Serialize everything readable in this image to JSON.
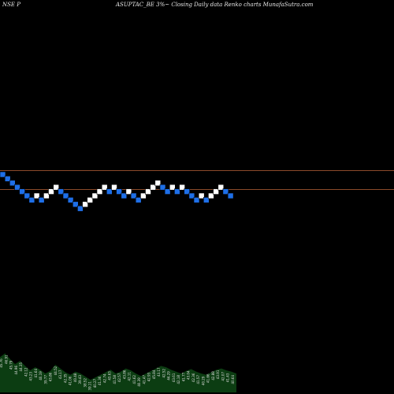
{
  "header": {
    "left": "NSE P",
    "right": "ASUPTAC_BE 3%~  Closing Daily data  Renko  charts MunafaSutra.com"
  },
  "colors": {
    "background": "#000000",
    "up_brick": "#ffffff",
    "down_brick": "#1e6fe8",
    "reference_line": "#8b4a2a",
    "volume_fill": "#0c3d12",
    "volume_text": "#e0e0e0"
  },
  "chart_data": {
    "type": "renko",
    "brick_size_label": "3%",
    "bricks": [
      {
        "dir": "down",
        "level": 9
      },
      {
        "dir": "down",
        "level": 8
      },
      {
        "dir": "down",
        "level": 7
      },
      {
        "dir": "down",
        "level": 6
      },
      {
        "dir": "down",
        "level": 5
      },
      {
        "dir": "down",
        "level": 4
      },
      {
        "dir": "down",
        "level": 3
      },
      {
        "dir": "up",
        "level": 4
      },
      {
        "dir": "down",
        "level": 3
      },
      {
        "dir": "up",
        "level": 4
      },
      {
        "dir": "up",
        "level": 5
      },
      {
        "dir": "up",
        "level": 6
      },
      {
        "dir": "down",
        "level": 5
      },
      {
        "dir": "down",
        "level": 4
      },
      {
        "dir": "down",
        "level": 3
      },
      {
        "dir": "down",
        "level": 2
      },
      {
        "dir": "down",
        "level": 1
      },
      {
        "dir": "up",
        "level": 2
      },
      {
        "dir": "up",
        "level": 3
      },
      {
        "dir": "up",
        "level": 4
      },
      {
        "dir": "up",
        "level": 5
      },
      {
        "dir": "up",
        "level": 6
      },
      {
        "dir": "down",
        "level": 5
      },
      {
        "dir": "up",
        "level": 6
      },
      {
        "dir": "down",
        "level": 5
      },
      {
        "dir": "down",
        "level": 4
      },
      {
        "dir": "up",
        "level": 5
      },
      {
        "dir": "down",
        "level": 4
      },
      {
        "dir": "down",
        "level": 3
      },
      {
        "dir": "up",
        "level": 4
      },
      {
        "dir": "up",
        "level": 5
      },
      {
        "dir": "up",
        "level": 6
      },
      {
        "dir": "up",
        "level": 7
      },
      {
        "dir": "down",
        "level": 6
      },
      {
        "dir": "down",
        "level": 5
      },
      {
        "dir": "up",
        "level": 6
      },
      {
        "dir": "down",
        "level": 5
      },
      {
        "dir": "up",
        "level": 6
      },
      {
        "dir": "down",
        "level": 5
      },
      {
        "dir": "down",
        "level": 4
      },
      {
        "dir": "down",
        "level": 3
      },
      {
        "dir": "up",
        "level": 4
      },
      {
        "dir": "down",
        "level": 3
      },
      {
        "dir": "up",
        "level": 4
      },
      {
        "dir": "up",
        "level": 5
      },
      {
        "dir": "up",
        "level": 6
      },
      {
        "dir": "down",
        "level": 5
      },
      {
        "dir": "down",
        "level": 4
      }
    ],
    "reference_levels": [
      9,
      4
    ],
    "volume_profile": [
      0.56,
      0.62,
      0.53,
      0.45,
      0.5,
      0.42,
      0.35,
      0.4,
      0.36,
      0.3,
      0.34,
      0.44,
      0.38,
      0.32,
      0.28,
      0.33,
      0.3,
      0.25,
      0.2,
      0.24,
      0.28,
      0.32,
      0.36,
      0.3,
      0.33,
      0.38,
      0.35,
      0.3,
      0.26,
      0.3,
      0.34,
      0.38,
      0.42,
      0.4,
      0.36,
      0.33,
      0.3,
      0.34,
      0.37,
      0.33,
      0.3,
      0.28,
      0.32,
      0.36,
      0.38,
      0.35,
      0.33,
      0.3
    ],
    "volume_labels": [
      "45.76",
      "46.91",
      "45.79",
      "44.96",
      "44.35",
      "42.12",
      "43.23",
      "41.64",
      "40.19",
      "39.77",
      "43.86",
      "44.52",
      "43.17",
      "42.35",
      "41.06",
      "40.48",
      "39.43",
      "38.52",
      "39.11",
      "40.27",
      "41.36",
      "42.74",
      "43.63",
      "41.58",
      "42.57",
      "43.86",
      "42.11",
      "41.62",
      "40.39",
      "41.47",
      "42.93",
      "45.84",
      "43.17",
      "42.52",
      "44.29",
      "43.61",
      "42.18",
      "41.77",
      "43.04",
      "42.36",
      "41.57",
      "40.29",
      "41.66",
      "42.88",
      "43.91",
      "42.07",
      "41.43",
      "40.64"
    ]
  }
}
